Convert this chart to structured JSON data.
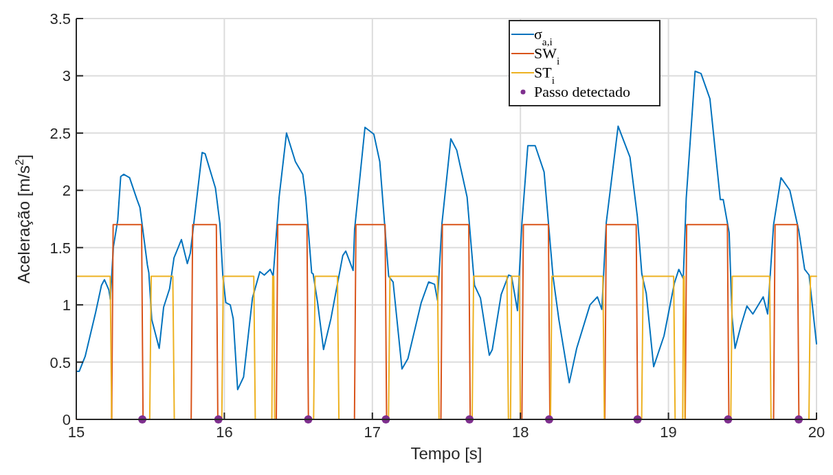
{
  "chart_data": {
    "type": "line",
    "xlabel": "Tempo [s]",
    "ylabel": "Aceleração [m/s$^{2}$]",
    "xlim": [
      15,
      20
    ],
    "ylim": [
      0,
      3.5
    ],
    "xticks": [
      15,
      16,
      17,
      18,
      19,
      20
    ],
    "yticks": [
      0,
      0.5,
      1,
      1.5,
      2,
      2.5,
      3,
      3.5
    ],
    "grid": true,
    "legend": "top right",
    "line_style": "solid",
    "series": [
      {
        "name": "σ$_{a,i}$",
        "color": "#0072bd",
        "x": [
          15.0,
          15.02,
          15.06,
          15.13,
          15.17,
          15.19,
          15.21,
          15.22,
          15.23,
          15.25,
          15.28,
          15.3,
          15.32,
          15.36,
          15.41,
          15.43,
          15.48,
          15.49,
          15.51,
          15.54,
          15.56,
          15.59,
          15.63,
          15.66,
          15.71,
          15.75,
          15.77,
          15.85,
          15.87,
          15.94,
          15.97,
          15.99,
          16.01,
          16.04,
          16.06,
          16.09,
          16.13,
          16.19,
          16.24,
          16.27,
          16.31,
          16.33,
          16.37,
          16.42,
          16.48,
          16.53,
          16.55,
          16.59,
          16.6,
          16.63,
          16.67,
          16.72,
          16.8,
          16.82,
          16.87,
          16.88,
          16.95,
          17.01,
          17.05,
          17.11,
          17.14,
          17.2,
          17.24,
          17.33,
          17.38,
          17.42,
          17.44,
          17.47,
          17.53,
          17.57,
          17.64,
          17.69,
          17.73,
          17.79,
          17.81,
          17.87,
          17.92,
          17.94,
          17.98,
          18.01,
          18.05,
          18.1,
          18.16,
          18.22,
          18.26,
          18.33,
          18.38,
          18.47,
          18.52,
          18.55,
          18.58,
          18.66,
          18.74,
          18.79,
          18.82,
          18.85,
          18.9,
          18.97,
          19.04,
          19.07,
          19.1,
          19.12,
          19.18,
          19.22,
          19.28,
          19.35,
          19.37,
          19.41,
          19.43,
          19.45,
          19.49,
          19.53,
          19.57,
          19.64,
          19.67,
          19.71,
          19.76,
          19.82,
          19.88,
          19.92,
          19.95,
          20.0
        ],
        "values": [
          0.42,
          0.42,
          0.55,
          0.93,
          1.17,
          1.22,
          1.16,
          1.13,
          1.05,
          1.5,
          1.74,
          2.12,
          2.14,
          2.11,
          1.92,
          1.85,
          1.35,
          1.28,
          0.87,
          0.72,
          0.62,
          0.98,
          1.14,
          1.41,
          1.57,
          1.36,
          1.45,
          2.33,
          2.32,
          2.02,
          1.71,
          1.25,
          1.02,
          1.0,
          0.88,
          0.26,
          0.37,
          1.06,
          1.29,
          1.26,
          1.31,
          1.25,
          1.94,
          2.5,
          2.25,
          2.14,
          1.94,
          1.28,
          1.27,
          1.02,
          0.61,
          0.88,
          1.43,
          1.47,
          1.3,
          1.66,
          2.55,
          2.49,
          2.25,
          1.25,
          1.2,
          0.44,
          0.53,
          1.02,
          1.2,
          1.18,
          1.04,
          1.71,
          2.45,
          2.35,
          1.94,
          1.17,
          1.06,
          0.56,
          0.61,
          1.09,
          1.26,
          1.25,
          0.95,
          1.71,
          2.39,
          2.39,
          2.16,
          1.25,
          0.87,
          0.32,
          0.62,
          1.0,
          1.07,
          0.96,
          1.72,
          2.56,
          2.29,
          1.77,
          1.27,
          1.1,
          0.46,
          0.73,
          1.19,
          1.31,
          1.23,
          1.93,
          3.04,
          3.02,
          2.8,
          1.92,
          1.92,
          1.63,
          0.89,
          0.62,
          0.82,
          0.99,
          0.92,
          1.07,
          0.92,
          1.7,
          2.11,
          2.0,
          1.65,
          1.31,
          1.26,
          0.66
        ]
      },
      {
        "name": "SW$_{i}$",
        "color": "#d95319",
        "x": [
          15.0,
          15.239,
          15.249,
          15.441,
          15.451,
          15.776,
          15.786,
          15.946,
          15.956,
          16.351,
          16.361,
          16.558,
          16.568,
          16.879,
          16.889,
          17.086,
          17.096,
          17.463,
          17.473,
          17.651,
          17.661,
          18.01,
          18.02,
          18.189,
          18.199,
          18.57,
          18.58,
          18.782,
          18.792,
          19.113,
          19.123,
          19.398,
          19.408,
          19.71,
          19.72,
          19.871,
          19.881,
          20.0
        ],
        "values": [
          0,
          0,
          1.7,
          1.7,
          0,
          0,
          1.7,
          1.7,
          0,
          0,
          1.7,
          1.7,
          0,
          0,
          1.7,
          1.7,
          0,
          0,
          1.7,
          1.7,
          0,
          0,
          1.7,
          1.7,
          0,
          0,
          1.7,
          1.7,
          0,
          0,
          1.7,
          1.7,
          0,
          0,
          1.7,
          1.7,
          0,
          0
        ]
      },
      {
        "name": "ST$_{i}$",
        "color": "#edb120",
        "x": [
          15.0,
          15.229,
          15.239,
          15.496,
          15.506,
          15.652,
          15.662,
          15.983,
          15.993,
          16.199,
          16.209,
          16.321,
          16.327,
          16.334,
          16.34,
          16.603,
          16.613,
          16.764,
          16.774,
          17.109,
          17.119,
          17.44,
          17.45,
          17.674,
          17.684,
          17.909,
          17.919,
          17.933,
          17.941,
          17.992,
          18.0,
          18.203,
          18.213,
          18.557,
          18.567,
          18.819,
          18.829,
          19.035,
          19.045,
          19.096,
          19.101,
          19.106,
          19.111,
          19.421,
          19.431,
          19.683,
          19.693,
          19.949,
          19.959,
          20.0
        ],
        "values": [
          1.25,
          1.25,
          0,
          0,
          1.25,
          1.25,
          0,
          0,
          1.25,
          1.25,
          0,
          0,
          1.25,
          1.25,
          0,
          0,
          1.25,
          1.25,
          0,
          0,
          1.25,
          1.25,
          0,
          0,
          1.25,
          1.25,
          0,
          0,
          1.25,
          1.25,
          0,
          0,
          1.25,
          1.25,
          0,
          0,
          1.25,
          1.25,
          0,
          0,
          1.25,
          1.25,
          0,
          0,
          1.25,
          1.25,
          0,
          0,
          1.25,
          1.25
        ]
      },
      {
        "name": "Passo detectado",
        "type": "scatter",
        "marker": "circle",
        "color": "#7e2f8e",
        "x": [
          15.446,
          15.96,
          16.567,
          17.091,
          17.656,
          18.194,
          18.791,
          19.403,
          19.88
        ],
        "values": [
          0,
          0,
          0,
          0,
          0,
          0,
          0,
          0,
          0
        ]
      }
    ]
  }
}
